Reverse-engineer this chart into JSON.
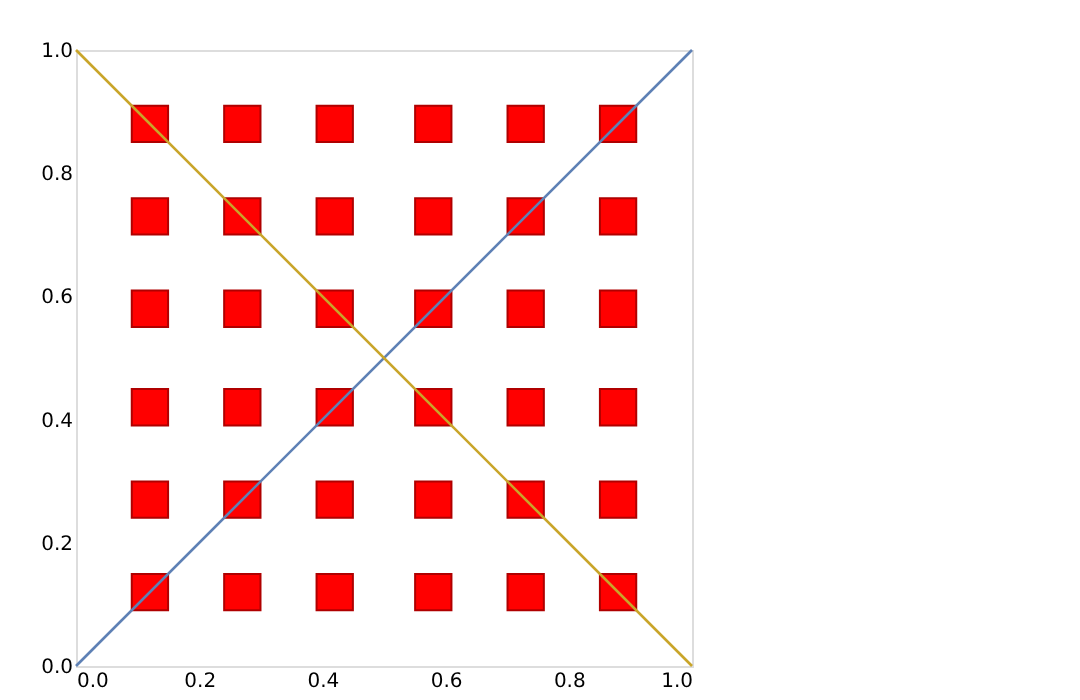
{
  "chart_data": {
    "type": "scatter",
    "grid": false,
    "xlim": [
      0,
      1
    ],
    "ylim": [
      0,
      1
    ],
    "xticks": [
      {
        "value": 0,
        "label": "0.0"
      },
      0.2,
      0.4,
      0.6,
      0.8,
      {
        "value": 1,
        "label": "1.0"
      }
    ],
    "yticks": [
      {
        "value": 0,
        "label": "0.0"
      },
      0.2,
      0.4,
      0.6,
      0.8,
      {
        "value": 1,
        "label": "1.0"
      }
    ],
    "series": [
      {
        "marker": "square",
        "color": "#ff0000",
        "x": [
          0.12,
          0.27,
          0.42,
          0.58,
          0.73,
          0.88,
          0.12,
          0.27,
          0.42,
          0.58,
          0.73,
          0.88,
          0.12,
          0.27,
          0.42,
          0.58,
          0.73,
          0.88,
          0.12,
          0.27,
          0.42,
          0.58,
          0.73,
          0.88,
          0.12,
          0.27,
          0.42,
          0.58,
          0.73,
          0.88,
          0.12,
          0.27,
          0.42,
          0.58,
          0.73,
          0.88
        ],
        "values": [
          0.12,
          0.12,
          0.12,
          0.12,
          0.12,
          0.12,
          0.27,
          0.27,
          0.27,
          0.27,
          0.27,
          0.27,
          0.42,
          0.42,
          0.42,
          0.42,
          0.42,
          0.42,
          0.58,
          0.58,
          0.58,
          0.58,
          0.58,
          0.58,
          0.73,
          0.73,
          0.73,
          0.73,
          0.73,
          0.73,
          0.88,
          0.88,
          0.88,
          0.88,
          0.88,
          0.88
        ]
      },
      {
        "type": "line",
        "color": "#5e81b5",
        "x": [
          0,
          1
        ],
        "values": [
          0,
          1
        ]
      },
      {
        "type": "line",
        "color": "#c9a52a",
        "x": [
          0,
          1
        ],
        "values": [
          1,
          0
        ]
      }
    ]
  }
}
